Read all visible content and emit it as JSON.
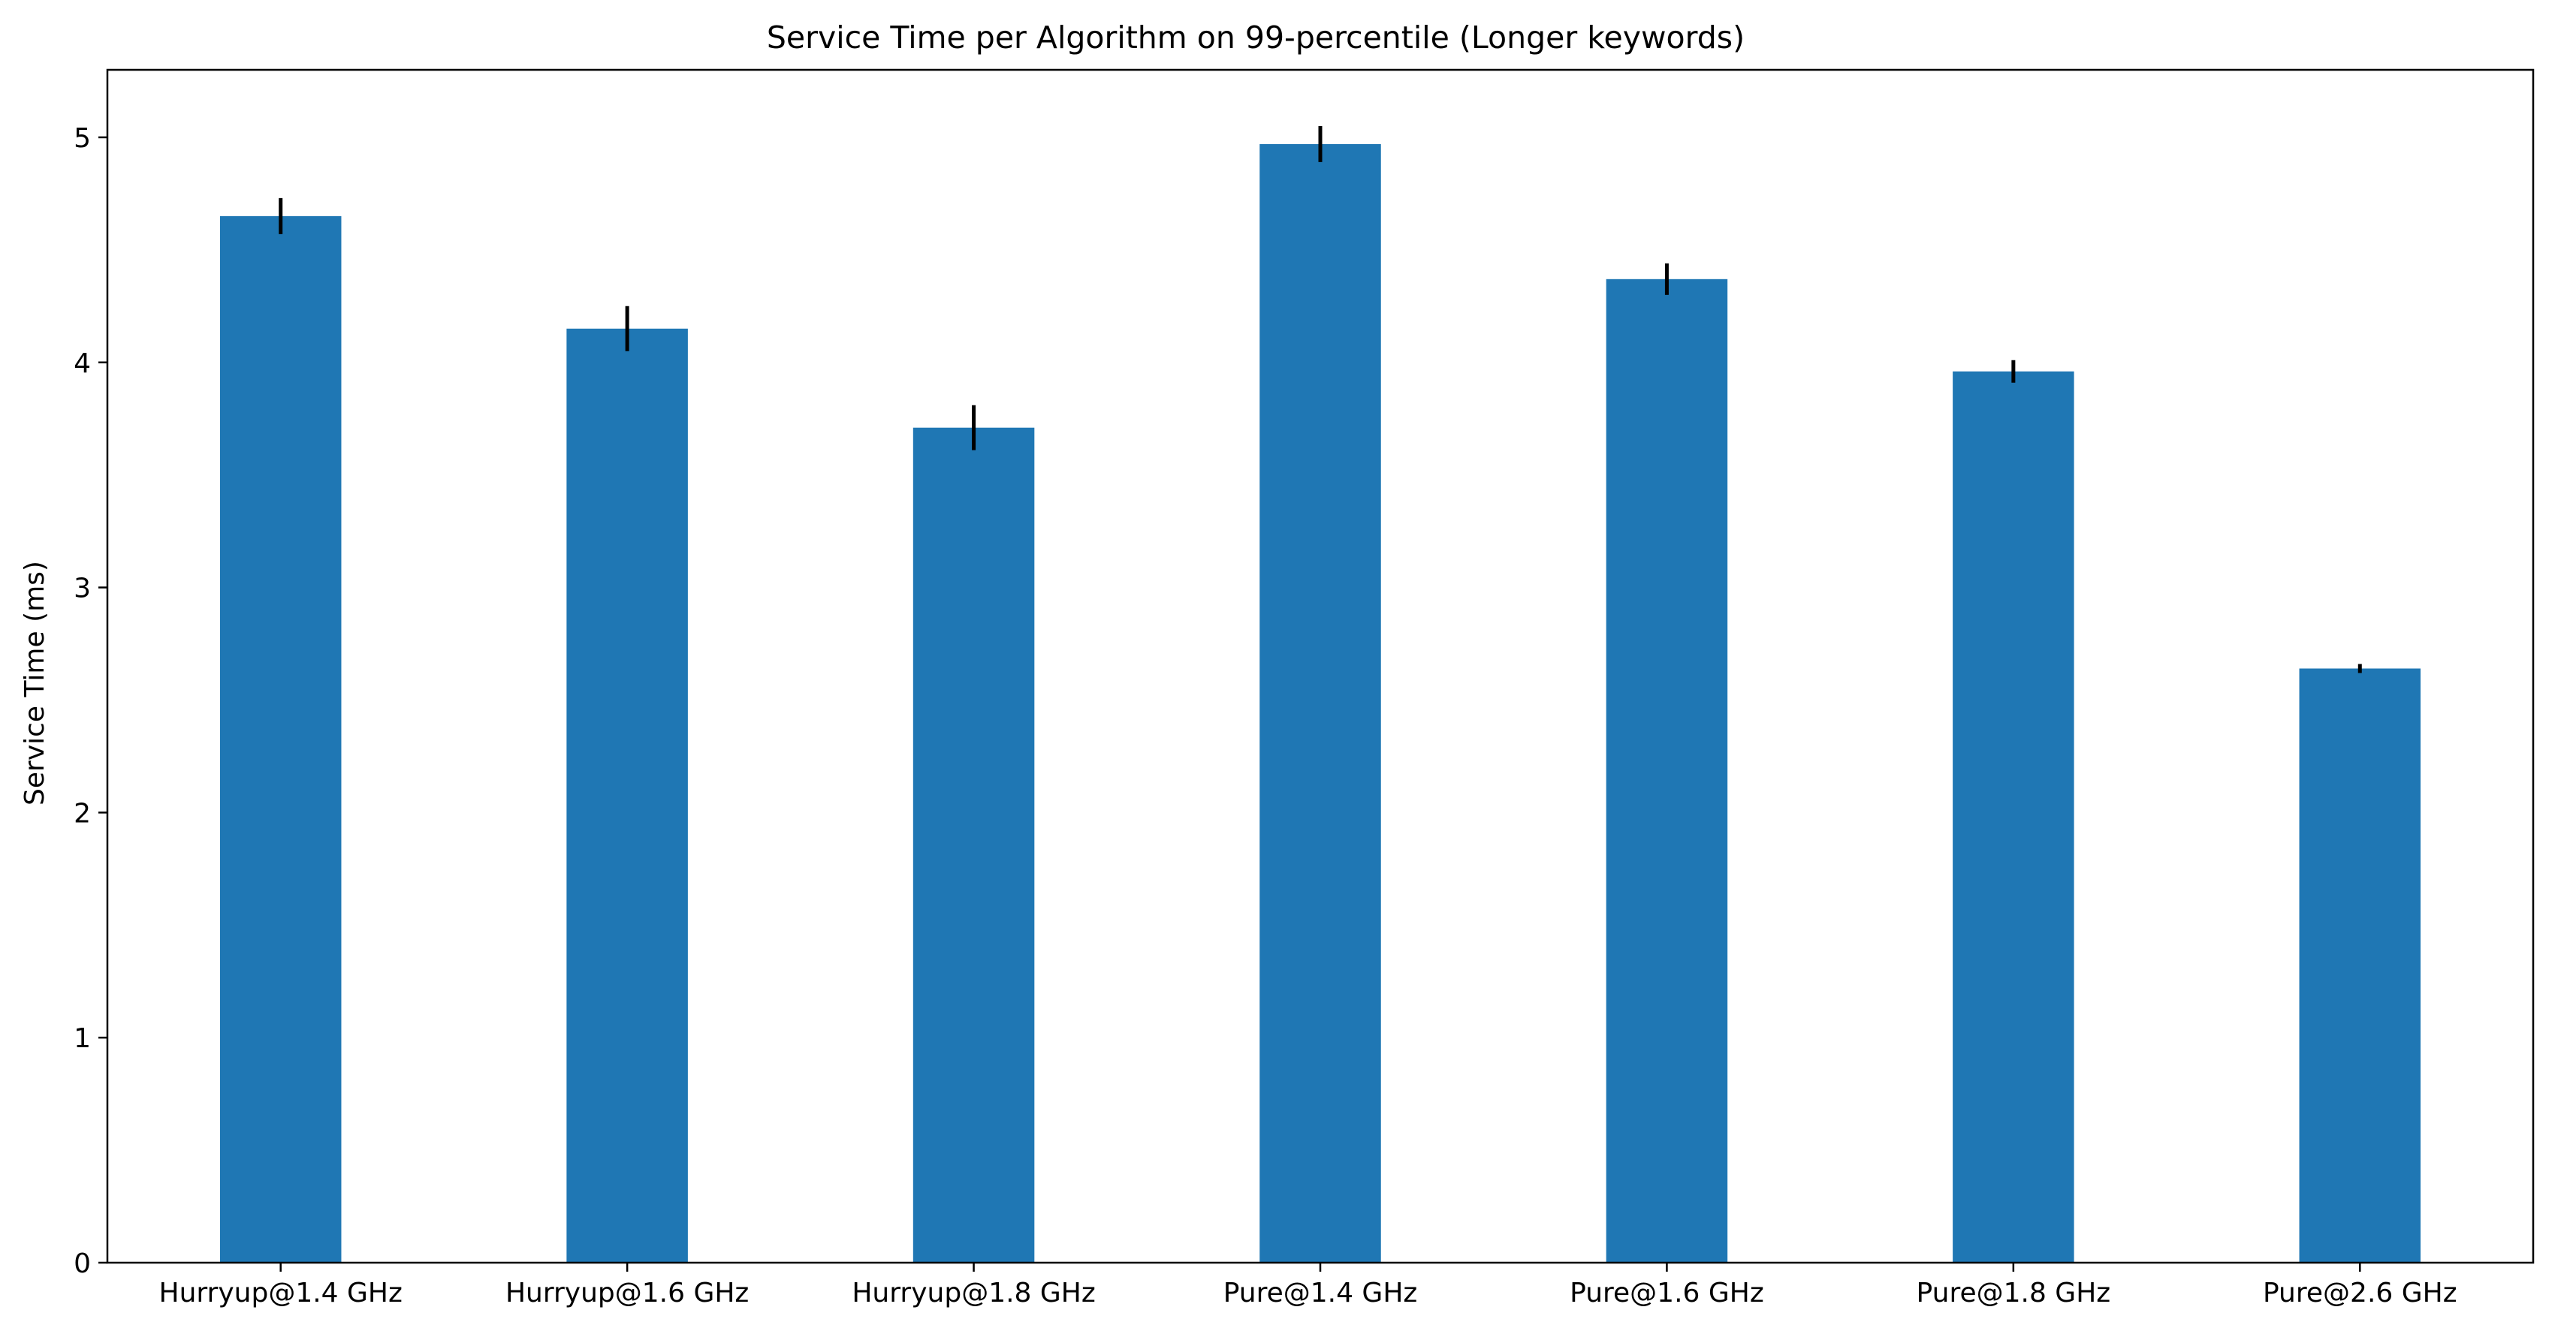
{
  "chart_data": {
    "type": "bar",
    "title": "Service Time per Algorithm on 99-percentile (Longer keywords)",
    "xlabel": "",
    "ylabel": "Service Time (ms)",
    "categories": [
      "Hurryup@1.4 GHz",
      "Hurryup@1.6 GHz",
      "Hurryup@1.8 GHz",
      "Pure@1.4 GHz",
      "Pure@1.6 GHz",
      "Pure@1.8 GHz",
      "Pure@2.6 GHz"
    ],
    "values": [
      4.65,
      4.15,
      3.71,
      4.97,
      4.37,
      3.96,
      2.64
    ],
    "errors": [
      0.08,
      0.1,
      0.1,
      0.08,
      0.07,
      0.05,
      0.02
    ],
    "ylim": [
      0,
      5.3
    ],
    "yticks": [
      0,
      1,
      2,
      3,
      4,
      5
    ],
    "grid": false,
    "bar_color": "#1f77b4",
    "error_color": "#000000"
  }
}
